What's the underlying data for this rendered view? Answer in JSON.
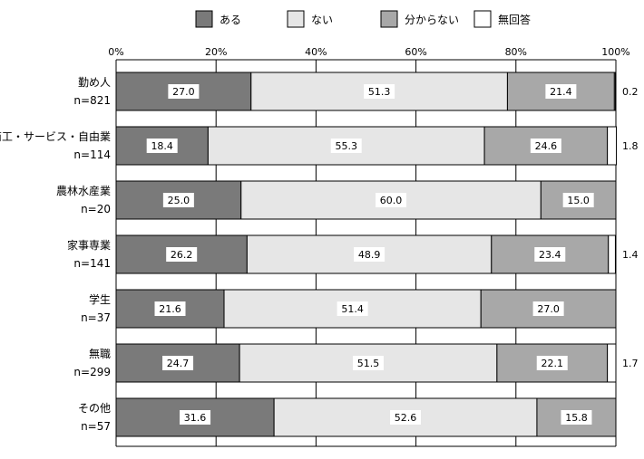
{
  "colors": {
    "ある": "#7a7a7a",
    "ない": "#e6e6e6",
    "分からない": "#a8a8a8",
    "無回答": "#ffffff",
    "outline": "#000000"
  },
  "chart_data": {
    "type": "bar",
    "orientation": "horizontal-stacked-100",
    "legend_position": "top",
    "xlim": [
      0,
      100
    ],
    "ticks": [
      "0%",
      "20%",
      "40%",
      "60%",
      "80%",
      "100%"
    ],
    "categories": [
      {
        "name": "勤め人",
        "n": "n=821"
      },
      {
        "name": "商工・サービス・自由業",
        "n": "n=114"
      },
      {
        "name": "農林水産業",
        "n": "n=20"
      },
      {
        "name": "家事専業",
        "n": "n=141"
      },
      {
        "name": "学生",
        "n": "n=37"
      },
      {
        "name": "無職",
        "n": "n=299"
      },
      {
        "name": "その他",
        "n": "n=57"
      }
    ],
    "series": [
      {
        "name": "ある",
        "values": [
          27.0,
          18.4,
          25.0,
          26.2,
          21.6,
          24.7,
          31.6
        ],
        "labels": [
          "27.0",
          "18.4",
          "25.0",
          "26.2",
          "21.6",
          "24.7",
          "31.6"
        ]
      },
      {
        "name": "ない",
        "values": [
          51.3,
          55.3,
          60.0,
          48.9,
          51.4,
          51.5,
          52.6
        ],
        "labels": [
          "51.3",
          "55.3",
          "60.0",
          "48.9",
          "51.4",
          "51.5",
          "52.6"
        ]
      },
      {
        "name": "分からない",
        "values": [
          21.4,
          24.6,
          15.0,
          23.4,
          27.0,
          22.1,
          15.8
        ],
        "labels": [
          "21.4",
          "24.6",
          "15.0",
          "23.4",
          "27.0",
          "22.1",
          "15.8"
        ]
      },
      {
        "name": "無回答",
        "values": [
          0.2,
          1.8,
          0,
          1.4,
          0,
          1.7,
          0
        ],
        "labels": [
          "0.2",
          "1.8",
          "",
          "1.4",
          "",
          "1.7",
          ""
        ]
      }
    ]
  }
}
